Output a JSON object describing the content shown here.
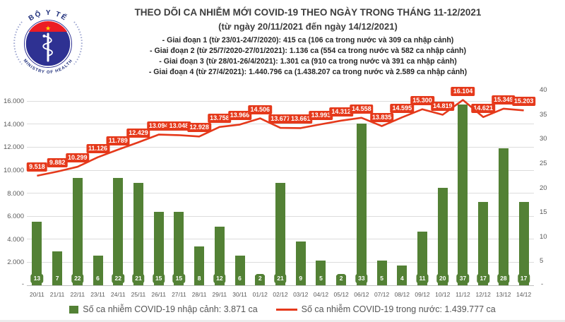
{
  "logo": {
    "top_text": "BỘ Y TẾ",
    "bottom_text": "MINISTRY OF HEALTH"
  },
  "header": {
    "title": "THEO DÕI CA NHIỄM MỚI COVID-19 THEO NGÀY TRONG THÁNG 11-12/2021",
    "subtitle": "(từ ngày 20/11/2021 đến ngày 14/12/2021)",
    "phases": [
      "- Giai đoạn 1 (từ 23/01-24/7/2020): 415 ca (106 ca trong nước và 309 ca nhập cảnh)",
      "- Giai đoạn 2 (từ 25/7/2020-27/01/2021): 1.136 ca (554 ca trong nước và 582 ca nhập cảnh)",
      "- Giai đoạn 3 (từ 28/01-26/4/2021): 1.301 ca (910 ca trong nước và 391 ca nhập cảnh)",
      "- Giai đoạn 4 (từ 27/4/2021): 1.440.796 ca (1.438.207 ca trong nước và 2.589 ca nhập cảnh)"
    ]
  },
  "chart_data": {
    "type": "combo bar+line",
    "categories": [
      "20/11",
      "21/11",
      "22/11",
      "23/11",
      "24/11",
      "25/11",
      "26/11",
      "27/11",
      "28/11",
      "29/11",
      "30/11",
      "01/12",
      "02/12",
      "03/12",
      "04/12",
      "05/12",
      "06/12",
      "07/12",
      "08/12",
      "09/12",
      "10/12",
      "11/12",
      "12/12",
      "13/12",
      "14/12"
    ],
    "series": [
      {
        "name": "Số ca nhiễm COVID-19 nhập cảnh",
        "type": "bar",
        "axis": "right",
        "color": "#538135",
        "values": [
          13,
          7,
          22,
          6,
          22,
          21,
          15,
          15,
          8,
          12,
          6,
          2,
          21,
          9,
          5,
          2,
          33,
          5,
          4,
          11,
          20,
          37,
          17,
          28,
          17
        ]
      },
      {
        "name": "Số ca nhiễm COVID-19 trong nước",
        "type": "line",
        "axis": "left",
        "color": "#E5391B",
        "values": [
          9518,
          9882,
          10299,
          11126,
          11789,
          12429,
          13094,
          13048,
          12928,
          13758,
          13966,
          14506,
          13677,
          13661,
          13993,
          14312,
          14558,
          13835,
          14595,
          15300,
          14819,
          16104,
          14621,
          15349,
          15203
        ]
      }
    ],
    "left_axis": {
      "min": 0,
      "max": 17000,
      "grid_values": [
        2000,
        4000,
        6000,
        8000,
        10000,
        12000,
        14000,
        16000
      ],
      "zero_label": "-"
    },
    "right_axis": {
      "min": 0,
      "max": 40,
      "tick_values": [
        5,
        10,
        15,
        20,
        25,
        30,
        35,
        40
      ],
      "zero_label": "-"
    },
    "grid": true,
    "data_labels": true,
    "legend_position": "bottom"
  },
  "legend": {
    "bar_label": "Số ca nhiễm COVID-19 nhập cảnh: 3.871 ca",
    "line_label": "Số ca nhiễm COVID-19 trong nước: 1.439.777 ca"
  },
  "colors": {
    "bar": "#538135",
    "line": "#E5391B",
    "star": "#FFDE00",
    "logo_navy": "#2E3192",
    "logo_red": "#EC1C24"
  }
}
